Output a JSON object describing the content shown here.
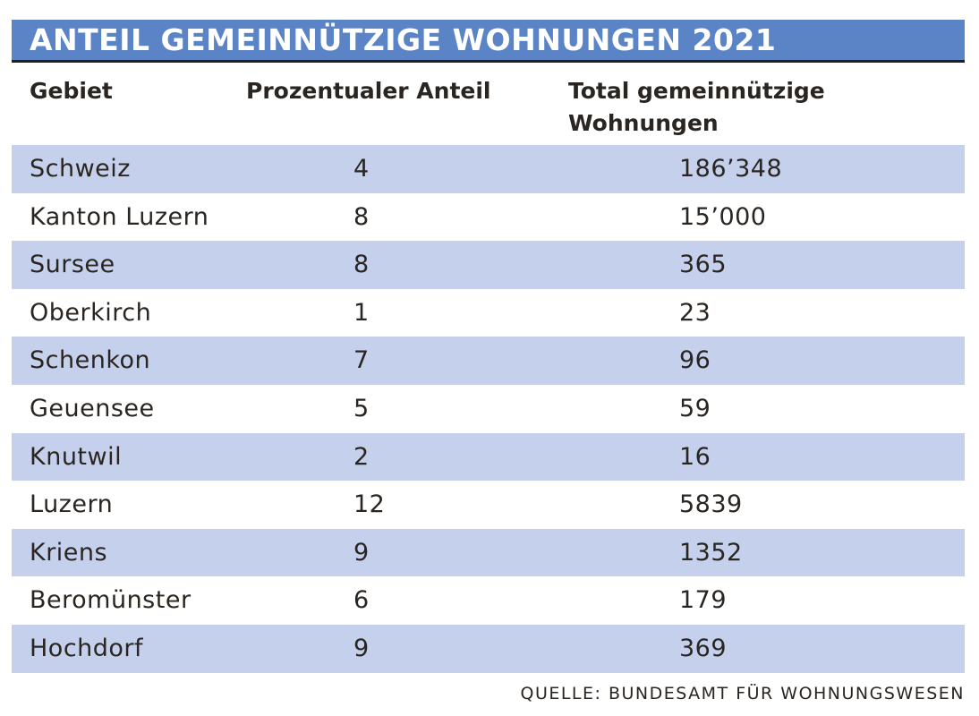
{
  "title": "ANTEIL GEMEINNÜTZIGE WOHNUNGEN 2021",
  "columns": {
    "gebiet": "Gebiet",
    "anteil": "Prozentualer Anteil",
    "total_line1": "Total gemeinnützige",
    "total_line2": "Wohnungen"
  },
  "rows": [
    {
      "gebiet": "Schweiz",
      "anteil": "4",
      "total": "186’348"
    },
    {
      "gebiet": "Kanton Luzern",
      "anteil": "8",
      "total": "15’000"
    },
    {
      "gebiet": "Sursee",
      "anteil": "8",
      "total": "365"
    },
    {
      "gebiet": "Oberkirch",
      "anteil": "1",
      "total": "23"
    },
    {
      "gebiet": "Schenkon",
      "anteil": "7",
      "total": "96"
    },
    {
      "gebiet": "Geuensee",
      "anteil": "5",
      "total": "59"
    },
    {
      "gebiet": "Knutwil",
      "anteil": "2",
      "total": "16"
    },
    {
      "gebiet": "Luzern",
      "anteil": "12",
      "total": "5839"
    },
    {
      "gebiet": "Kriens",
      "anteil": "9",
      "total": "1352"
    },
    {
      "gebiet": "Beromünster",
      "anteil": "6",
      "total": "179"
    },
    {
      "gebiet": "Hochdorf",
      "anteil": "9",
      "total": "369"
    }
  ],
  "source": "QUELLE: BUNDESAMT FÜR WOHNUNGSWESEN",
  "colors": {
    "title_bar": "#5b84c6",
    "row_shade": "#c5d1ec",
    "text": "#2a2520"
  }
}
